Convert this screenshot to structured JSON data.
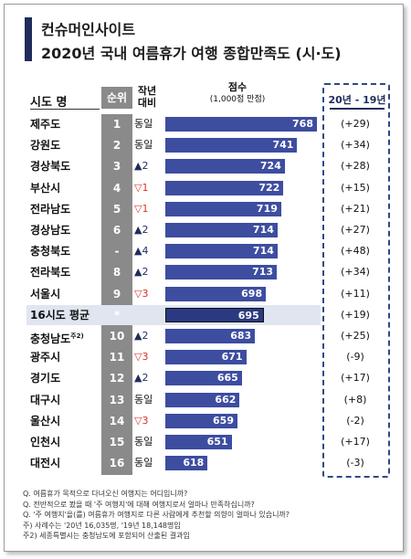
{
  "titles": {
    "line1": "컨슈머인사이트",
    "line2": "2020년 국내 여름휴가 여행 종합만족도 (시·도)"
  },
  "headers": {
    "region": "시도 명",
    "rank": "순위",
    "change": "작년 대비",
    "score": "점수",
    "score_unit": "(1,000점 만점)",
    "diff": "20년 - 19년"
  },
  "colors": {
    "bar": "#3d4da0",
    "accent": "#1f2c5c",
    "up": "#1f2c5c",
    "down": "#d9342b",
    "rank_column": "#8a8a8a",
    "average_highlight": "#dfe6f0"
  },
  "chart_data": {
    "type": "bar",
    "orientation": "horizontal",
    "title": "2020년 국내 여름휴가 여행 종합만족도 (시·도)",
    "xlabel": "점수",
    "xlim": [
      0,
      1000
    ],
    "rows": [
      {
        "name": "제주도",
        "rank": "1",
        "change": "동일",
        "dir": "same",
        "score": 768,
        "diff": "(+29)"
      },
      {
        "name": "강원도",
        "rank": "2",
        "change": "동일",
        "dir": "same",
        "score": 741,
        "diff": "(+34)"
      },
      {
        "name": "경상북도",
        "rank": "3",
        "change": "▲2",
        "dir": "up",
        "score": 724,
        "diff": "(+28)"
      },
      {
        "name": "부산시",
        "rank": "4",
        "change": "▽1",
        "dir": "down",
        "score": 722,
        "diff": "(+15)"
      },
      {
        "name": "전라남도",
        "rank": "5",
        "change": "▽1",
        "dir": "down",
        "score": 719,
        "diff": "(+21)"
      },
      {
        "name": "경상남도",
        "rank": "6",
        "change": "▲2",
        "dir": "up",
        "score": 714,
        "diff": "(+27)"
      },
      {
        "name": "충청북도",
        "rank": "-",
        "change": "▲4",
        "dir": "up",
        "score": 714,
        "diff": "(+48)"
      },
      {
        "name": "전라북도",
        "rank": "8",
        "change": "▲2",
        "dir": "up",
        "score": 713,
        "diff": "(+34)"
      },
      {
        "name": "서울시",
        "rank": "9",
        "change": "▽3",
        "dir": "down",
        "score": 698,
        "diff": "(+11)"
      },
      {
        "name": "16시도 평균",
        "rank": "*",
        "change": "",
        "dir": "same",
        "score": 695,
        "diff": "(+19)",
        "average": true
      },
      {
        "name": "충청남도",
        "note": "주2)",
        "rank": "10",
        "change": "▲2",
        "dir": "up",
        "score": 683,
        "diff": "(+25)"
      },
      {
        "name": "광주시",
        "rank": "11",
        "change": "▽3",
        "dir": "down",
        "score": 671,
        "diff": "(-9)"
      },
      {
        "name": "경기도",
        "rank": "12",
        "change": "▲2",
        "dir": "up",
        "score": 665,
        "diff": "(+17)"
      },
      {
        "name": "대구시",
        "rank": "13",
        "change": "동일",
        "dir": "same",
        "score": 662,
        "diff": "(+8)"
      },
      {
        "name": "울산시",
        "rank": "14",
        "change": "▽3",
        "dir": "down",
        "score": 659,
        "diff": "(-2)"
      },
      {
        "name": "인천시",
        "rank": "15",
        "change": "동일",
        "dir": "same",
        "score": 651,
        "diff": "(+17)"
      },
      {
        "name": "대전시",
        "rank": "16",
        "change": "동일",
        "dir": "same",
        "score": 618,
        "diff": "(-3)"
      }
    ]
  },
  "footnotes": [
    "Q. 여름휴가 목적으로 다녀오신 여행지는 어디입니까?",
    "Q. 전반적으로 봤을 때 '주 여행지'에 대해 여행지로서 얼마나 만족하십니까?",
    "Q. '주 여행지'을(를) 여름휴가 여행지로 다른 사람에게 추천할 의향이 얼마나 있습니까?",
    "주) 사례수는 '20년 16,035명, '19년 18,148명임",
    "주2) 세종특별시는 충청남도에 포함되어 산출된 결과임"
  ]
}
